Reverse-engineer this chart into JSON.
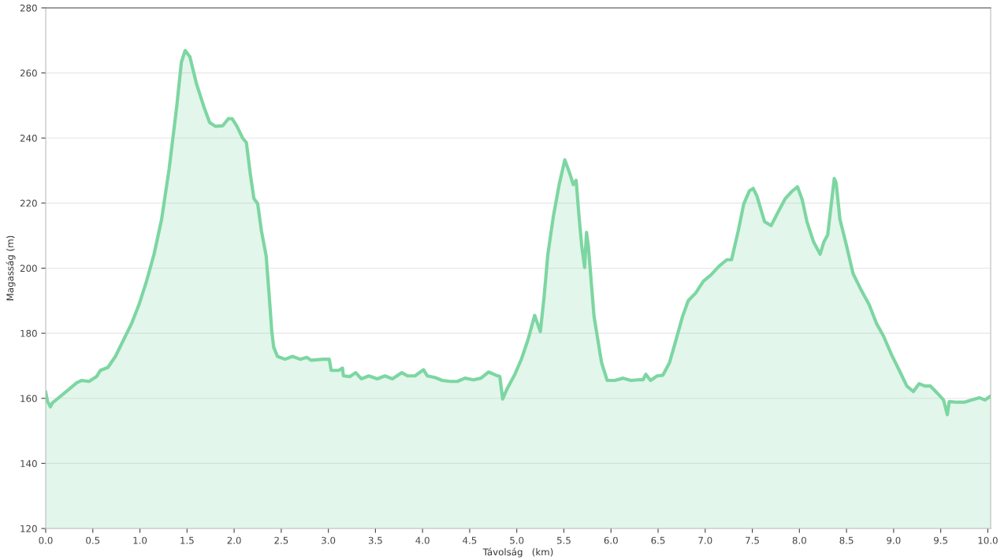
{
  "chart_data": {
    "type": "area",
    "xlabel": "Távolság   (km)",
    "ylabel": "Magasság (m)",
    "x": [
      0.0,
      0.02,
      0.05,
      0.07,
      0.13,
      0.21,
      0.33,
      0.38,
      0.46,
      0.54,
      0.58,
      0.66,
      0.74,
      0.82,
      0.91,
      0.99,
      1.07,
      1.15,
      1.23,
      1.31,
      1.35,
      1.39,
      1.44,
      1.48,
      1.53,
      1.6,
      1.68,
      1.74,
      1.8,
      1.88,
      1.94,
      1.98,
      2.03,
      2.09,
      2.13,
      2.17,
      2.21,
      2.25,
      2.29,
      2.34,
      2.37,
      2.4,
      2.42,
      2.46,
      2.54,
      2.62,
      2.7,
      2.77,
      2.82,
      2.94,
      3.01,
      3.03,
      3.11,
      3.15,
      3.16,
      3.23,
      3.29,
      3.35,
      3.43,
      3.52,
      3.6,
      3.68,
      3.78,
      3.84,
      3.92,
      4.01,
      4.05,
      4.13,
      4.21,
      4.29,
      4.37,
      4.45,
      4.54,
      4.62,
      4.7,
      4.78,
      4.82,
      4.85,
      4.9,
      4.98,
      5.05,
      5.12,
      5.19,
      5.25,
      5.29,
      5.33,
      5.39,
      5.45,
      5.51,
      5.56,
      5.6,
      5.63,
      5.66,
      5.69,
      5.72,
      5.74,
      5.76,
      5.82,
      5.9,
      5.96,
      6.04,
      6.13,
      6.21,
      6.29,
      6.34,
      6.37,
      6.42,
      6.49,
      6.55,
      6.62,
      6.68,
      6.76,
      6.82,
      6.9,
      6.98,
      7.06,
      7.15,
      7.23,
      7.28,
      7.35,
      7.41,
      7.47,
      7.51,
      7.55,
      7.63,
      7.7,
      7.78,
      7.85,
      7.92,
      7.98,
      8.03,
      8.08,
      8.15,
      8.22,
      8.26,
      8.3,
      8.37,
      8.39,
      8.43,
      8.49,
      8.57,
      8.65,
      8.74,
      8.82,
      8.89,
      8.98,
      9.06,
      9.14,
      9.21,
      9.27,
      9.33,
      9.39,
      9.47,
      9.53,
      9.57,
      9.59,
      9.67,
      9.75,
      9.83,
      9.91,
      9.97,
      10.03
    ],
    "series": [
      {
        "color": "#7dd6a2",
        "values": [
          161.9,
          159,
          157.4,
          158.6,
          160,
          161.9,
          164.8,
          165.5,
          165.2,
          166.7,
          168.6,
          169.5,
          172.9,
          177.6,
          182.9,
          188.8,
          196,
          204.3,
          215,
          230.5,
          240,
          249.5,
          263.3,
          266.9,
          265,
          256.7,
          249.5,
          244.8,
          243.6,
          243.8,
          246,
          245.9,
          243.6,
          240,
          238.6,
          229.3,
          221.4,
          219.8,
          211.4,
          203.8,
          192.4,
          180.5,
          175.7,
          172.9,
          172,
          172.9,
          172,
          172.6,
          171.7,
          172,
          172,
          168.6,
          168.6,
          169.3,
          166.9,
          166.7,
          167.9,
          166,
          166.9,
          166,
          166.9,
          166,
          167.9,
          166.9,
          166.9,
          168.8,
          166.9,
          166.4,
          165.5,
          165.2,
          165.2,
          166.2,
          165.7,
          166.2,
          168.1,
          167.1,
          166.7,
          159.8,
          163.1,
          167.4,
          172.1,
          178.1,
          185.5,
          180.5,
          191.2,
          204.3,
          216.2,
          225.7,
          233.3,
          229.3,
          225.7,
          227,
          216.2,
          206.7,
          200.2,
          211,
          206.7,
          185.2,
          171,
          165.5,
          165.5,
          166.2,
          165.5,
          165.7,
          165.7,
          167.4,
          165.5,
          166.9,
          167.1,
          170.9,
          176.9,
          185.2,
          190,
          192.4,
          196,
          197.9,
          200.7,
          202.6,
          202.6,
          211.4,
          219.8,
          223.8,
          224.5,
          222.1,
          214.3,
          213.1,
          217.6,
          221.4,
          223.6,
          225,
          221,
          214.3,
          208.1,
          204.3,
          208.1,
          210.2,
          227.6,
          226.2,
          215,
          208.1,
          198.3,
          193.6,
          188.8,
          182.9,
          179.3,
          173.3,
          168.6,
          163.8,
          162.1,
          164.5,
          163.8,
          163.8,
          161.4,
          159.5,
          155,
          159,
          158.8,
          158.8,
          159.5,
          160.2,
          159.5,
          160.7
        ]
      }
    ],
    "xlim": [
      0,
      10.03
    ],
    "ylim": [
      120,
      280
    ],
    "xticks": [
      {
        "value": 0,
        "label": "0.0"
      },
      0.5,
      {
        "value": 1,
        "label": "1.0"
      },
      1.5,
      {
        "value": 2,
        "label": "2.0"
      },
      2.5,
      {
        "value": 3,
        "label": "3.0"
      },
      3.5,
      {
        "value": 4,
        "label": "4.0"
      },
      4.5,
      {
        "value": 5,
        "label": "5.0"
      },
      5.5,
      {
        "value": 6,
        "label": "6.0"
      },
      6.5,
      {
        "value": 7,
        "label": "7.0"
      },
      7.5,
      {
        "value": 8,
        "label": "8.0"
      },
      8.5,
      {
        "value": 9,
        "label": "9.0"
      },
      9.5,
      {
        "value": 10,
        "label": "10.0"
      }
    ],
    "yticks": [
      120,
      140,
      160,
      180,
      200,
      220,
      240,
      260,
      280
    ],
    "grid": "y"
  }
}
